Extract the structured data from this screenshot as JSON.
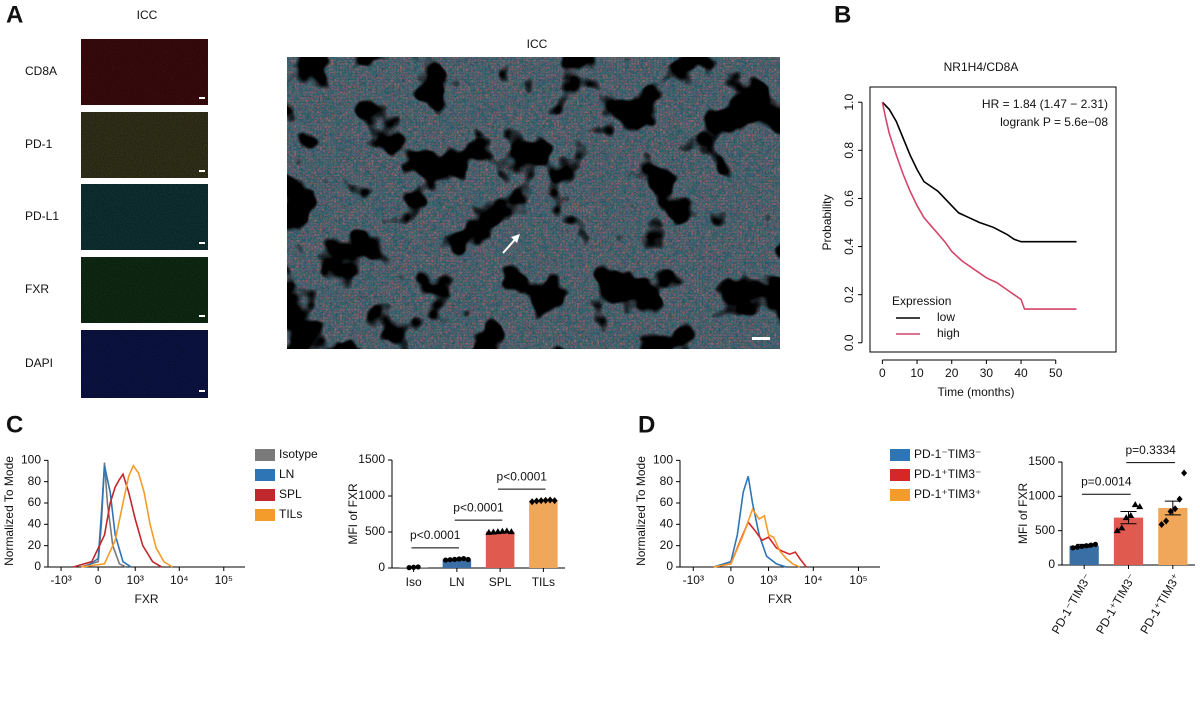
{
  "panels": [
    "A",
    "B",
    "C",
    "D"
  ],
  "panel_a": {
    "title": "ICC",
    "channels": [
      "CD8A",
      "PD-1",
      "PD-L1",
      "FXR",
      "DAPI"
    ],
    "merge_title": "ICC"
  },
  "chart_data": [
    {
      "type": "line",
      "title": "NR1H4/CD8A",
      "annotations": [
        "HR = 1.84 (1.47 − 2.31)",
        "logrank P = 5.6e−08"
      ],
      "x_label": "Time (months)",
      "y_label": "Probability",
      "legend_title": "Expression",
      "legend": "lower left",
      "legend_style": "line",
      "detached_axes": true,
      "series": [
        {
          "name": "low",
          "color": "#000000",
          "x": [
            0,
            2,
            4,
            6,
            8,
            10,
            12,
            14,
            16,
            18,
            20,
            22,
            25,
            28,
            32,
            36,
            38,
            40,
            56
          ],
          "values": [
            1,
            0.97,
            0.92,
            0.85,
            0.78,
            0.72,
            0.67,
            0.65,
            0.63,
            0.6,
            0.57,
            0.54,
            0.52,
            0.5,
            0.48,
            0.45,
            0.43,
            0.42,
            0.42
          ]
        },
        {
          "name": "high",
          "color": "#d6456a",
          "x": [
            0,
            1,
            2,
            4,
            6,
            8,
            10,
            12,
            15,
            18,
            20,
            23,
            26,
            30,
            33,
            36,
            38,
            40,
            41,
            56
          ],
          "values": [
            1,
            0.93,
            0.87,
            0.78,
            0.7,
            0.63,
            0.57,
            0.52,
            0.47,
            0.42,
            0.38,
            0.34,
            0.31,
            0.27,
            0.25,
            0.22,
            0.2,
            0.18,
            0.14,
            0.14
          ]
        }
      ],
      "xlim": [
        -3,
        57
      ],
      "xticks": [
        0,
        10,
        20,
        30,
        40,
        50
      ],
      "ylim": [
        -0.03,
        1.03
      ],
      "yticks": [
        {
          "value": 0,
          "label": "0.0"
        },
        {
          "value": 0.2,
          "label": "0.2"
        },
        {
          "value": 0.4,
          "label": "0.4"
        },
        {
          "value": 0.6,
          "label": "0.6"
        },
        {
          "value": 0.8,
          "label": "0.8"
        },
        {
          "value": 1,
          "label": "1.0"
        }
      ]
    },
    {
      "type": "line",
      "x_label": "FXR",
      "y_label": "Normalized To Mode",
      "xscale": "biexponential",
      "legend": "outside right",
      "legend_style": "patch",
      "series": [
        {
          "name": "Isotype",
          "color": "#7a7a7a",
          "x": [
            -300,
            0,
            50,
            100,
            150,
            250,
            400,
            600
          ],
          "values": [
            0,
            5,
            40,
            98,
            60,
            20,
            3,
            0
          ]
        },
        {
          "name": "LN",
          "color": "#2e75b6",
          "x": [
            -200,
            0,
            50,
            100,
            200,
            300,
            500,
            800
          ],
          "values": [
            0,
            8,
            50,
            95,
            70,
            30,
            5,
            0
          ]
        },
        {
          "name": "SPL",
          "color": "#c0282d",
          "x": [
            -500,
            -100,
            100,
            200,
            300,
            400,
            500,
            700,
            1000,
            1500,
            2500,
            4000
          ],
          "values": [
            0,
            5,
            30,
            60,
            75,
            82,
            87,
            70,
            45,
            20,
            5,
            0
          ]
        },
        {
          "name": "TILs",
          "color": "#f39c2c",
          "x": [
            -300,
            100,
            300,
            500,
            700,
            900,
            1200,
            1600,
            2200,
            3000,
            4500,
            7000
          ],
          "values": [
            0,
            3,
            25,
            60,
            85,
            95,
            88,
            70,
            40,
            18,
            5,
            0
          ]
        }
      ],
      "xlim": [
        -2000,
        300000
      ],
      "xticks": [
        {
          "value": -1000,
          "label": "-10³"
        },
        0,
        {
          "value": 1000,
          "label": "10³"
        },
        {
          "value": 10000,
          "label": "10⁴"
        },
        {
          "value": 100000,
          "label": "10⁵"
        }
      ],
      "ylim": [
        0,
        105
      ],
      "yticks": [
        0,
        20,
        40,
        60,
        80,
        100
      ]
    },
    {
      "type": "bar",
      "y_label": "MFI of FXR",
      "categories": [
        "Iso",
        "LN",
        "SPL",
        "TILs"
      ],
      "values": [
        10,
        120,
        505,
        935
      ],
      "colors": [
        "#8c8c8c",
        "#3a6fa6",
        "#e05a4f",
        "#f0a75a"
      ],
      "markers": [
        "circle",
        "circle",
        "triangle",
        "diamond"
      ],
      "points": [
        [
          5,
          10,
          15
        ],
        [
          110,
          115,
          120,
          125,
          130,
          118
        ],
        [
          495,
          500,
          505,
          510,
          515,
          505
        ],
        [
          920,
          930,
          935,
          940,
          945,
          935
        ]
      ],
      "significance": [
        {
          "groups": [
            0,
            1
          ],
          "label": "p<0.0001"
        },
        {
          "groups": [
            1,
            2
          ],
          "label": "p<0.0001"
        },
        {
          "groups": [
            2,
            3
          ],
          "label": "p<0.0001"
        }
      ],
      "ylim": [
        0,
        1500
      ],
      "yticks": [
        0,
        500,
        1000,
        1500
      ]
    },
    {
      "type": "line",
      "x_label": "FXR",
      "y_label": "Normalized To Mode",
      "xscale": "biexponential",
      "legend": "outside right",
      "legend_style": "patch",
      "series": [
        {
          "name": "PD-1⁻TIM3⁻",
          "color": "#2e75b6",
          "x": [
            -300,
            0,
            100,
            200,
            300,
            400,
            600,
            900,
            1500,
            2500
          ],
          "values": [
            0,
            5,
            30,
            70,
            85,
            60,
            30,
            10,
            3,
            0
          ]
        },
        {
          "name": "PD-1⁺TIM3⁻",
          "color": "#d62728",
          "x": [
            -300,
            0,
            150,
            300,
            450,
            700,
            1000,
            1500,
            2000,
            3000,
            4000,
            5000,
            7000
          ],
          "values": [
            0,
            3,
            25,
            42,
            35,
            25,
            28,
            18,
            15,
            12,
            14,
            8,
            0
          ]
        },
        {
          "name": "PD-1⁺TIM3⁺",
          "color": "#f39c2c",
          "x": [
            -300,
            0,
            200,
            400,
            600,
            800,
            1000,
            1300,
            1800,
            2500,
            3500,
            5000
          ],
          "values": [
            0,
            3,
            30,
            54,
            45,
            48,
            30,
            28,
            15,
            8,
            3,
            0
          ]
        }
      ],
      "xlim": [
        -2000,
        300000
      ],
      "xticks": [
        {
          "value": -1000,
          "label": "-10³"
        },
        0,
        {
          "value": 1000,
          "label": "10³"
        },
        {
          "value": 10000,
          "label": "10⁴"
        },
        {
          "value": 100000,
          "label": "10⁵"
        }
      ],
      "ylim": [
        0,
        105
      ],
      "yticks": [
        0,
        20,
        40,
        60,
        80,
        100
      ]
    },
    {
      "type": "bar",
      "y_label": "MFI of FXR",
      "categories": [
        "PD-1⁻TIM3⁻",
        "PD-1⁺TIM3⁻",
        "PD-1⁺TIM3⁺"
      ],
      "values": [
        280,
        690,
        830
      ],
      "errors": [
        20,
        90,
        100
      ],
      "colors": [
        "#3a6fa6",
        "#e05a4f",
        "#f0a75a"
      ],
      "markers": [
        "circle",
        "triangle",
        "diamond"
      ],
      "rotated_labels": true,
      "points": [
        [
          250,
          260,
          270,
          280,
          290,
          300
        ],
        [
          500,
          540,
          690,
          720,
          880,
          850
        ],
        [
          590,
          640,
          780,
          820,
          960,
          1340
        ]
      ],
      "significance": [
        {
          "groups": [
            0,
            1
          ],
          "label": "p=0.0014"
        },
        {
          "groups": [
            1,
            2
          ],
          "label": "p=0.3334"
        }
      ],
      "ylim": [
        0,
        1500
      ],
      "yticks": [
        0,
        500,
        1000,
        1500
      ]
    }
  ]
}
